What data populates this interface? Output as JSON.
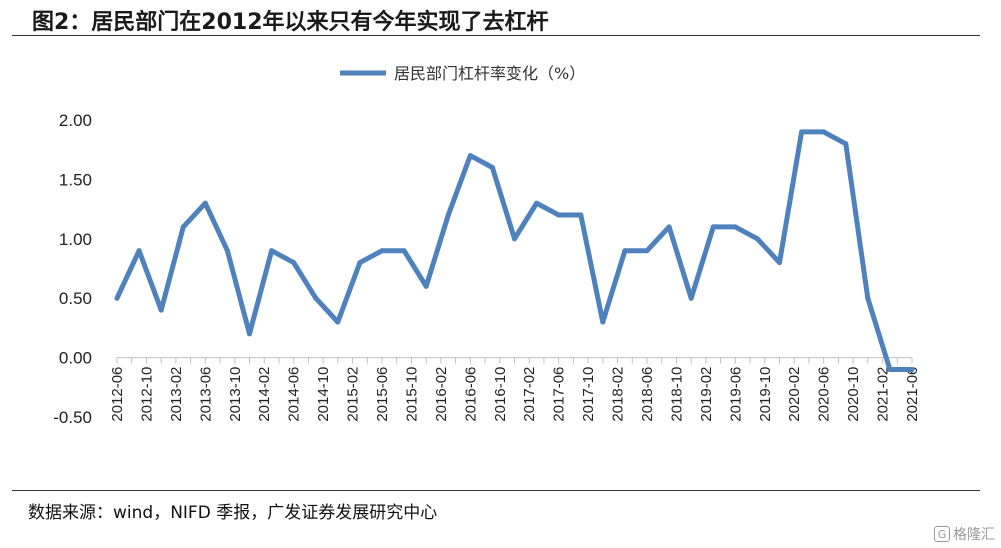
{
  "figure": {
    "title": "图2：居民部门在2012年以来只有今年实现了去杠杆",
    "source": "数据来源：wind，NIFD 季报，广发证券发展研究中心",
    "watermark": "格隆汇"
  },
  "chart_data": {
    "type": "line",
    "title": "",
    "xlabel": "",
    "ylabel": "",
    "ylim": [
      -0.5,
      2.0
    ],
    "yticks": [
      "2.00",
      "1.50",
      "1.00",
      "0.50",
      "0.00",
      "-0.50"
    ],
    "ytick_values": [
      2.0,
      1.5,
      1.0,
      0.5,
      0.0,
      -0.5
    ],
    "grid": false,
    "legend_position": "top-center",
    "x": [
      "2012-06",
      "2012-08",
      "2012-10",
      "2012-12",
      "2013-02",
      "2013-04",
      "2013-06",
      "2013-08",
      "2013-10",
      "2013-12",
      "2014-02",
      "2014-04",
      "2014-06",
      "2014-08",
      "2014-10",
      "2014-12",
      "2015-02",
      "2015-04",
      "2015-06",
      "2015-08",
      "2015-10",
      "2015-12",
      "2016-02",
      "2016-04",
      "2016-06",
      "2016-08",
      "2016-10",
      "2016-12",
      "2017-02",
      "2017-04",
      "2017-06",
      "2017-08",
      "2017-10",
      "2017-12",
      "2018-02",
      "2018-04",
      "2018-06",
      "2018-08",
      "2018-10",
      "2018-12",
      "2019-02",
      "2019-04",
      "2019-06",
      "2019-08",
      "2019-10",
      "2019-12",
      "2020-02",
      "2020-04",
      "2020-06",
      "2020-08",
      "2020-10",
      "2020-12",
      "2021-02",
      "2021-04",
      "2021-06"
    ],
    "x_tick_labels": [
      "2012-06",
      "2012-10",
      "2013-02",
      "2013-06",
      "2013-10",
      "2014-02",
      "2014-06",
      "2014-10",
      "2015-02",
      "2015-06",
      "2015-10",
      "2016-02",
      "2016-06",
      "2016-10",
      "2017-02",
      "2017-06",
      "2017-10",
      "2018-02",
      "2018-06",
      "2018-10",
      "2019-02",
      "2019-06",
      "2019-10",
      "2020-02",
      "2020-06",
      "2020-10",
      "2021-02",
      "2021-06"
    ],
    "series": [
      {
        "name": "居民部门杠杆率变化（%）",
        "color": "#4f81bd",
        "points": [
          [
            "2012-06",
            0.5
          ],
          [
            "2012-09",
            0.9
          ],
          [
            "2012-12",
            0.4
          ],
          [
            "2013-03",
            1.1
          ],
          [
            "2013-06",
            1.3
          ],
          [
            "2013-09",
            0.9
          ],
          [
            "2013-12",
            0.2
          ],
          [
            "2014-03",
            0.9
          ],
          [
            "2014-06",
            0.8
          ],
          [
            "2014-09",
            0.5
          ],
          [
            "2014-12",
            0.3
          ],
          [
            "2015-03",
            0.8
          ],
          [
            "2015-06",
            0.9
          ],
          [
            "2015-09",
            0.9
          ],
          [
            "2015-12",
            0.6
          ],
          [
            "2016-03",
            1.2
          ],
          [
            "2016-06",
            1.7
          ],
          [
            "2016-09",
            1.6
          ],
          [
            "2016-12",
            1.0
          ],
          [
            "2017-03",
            1.3
          ],
          [
            "2017-06",
            1.2
          ],
          [
            "2017-09",
            1.2
          ],
          [
            "2017-12",
            0.3
          ],
          [
            "2018-03",
            0.9
          ],
          [
            "2018-06",
            0.9
          ],
          [
            "2018-09",
            1.1
          ],
          [
            "2018-12",
            0.5
          ],
          [
            "2019-03",
            1.1
          ],
          [
            "2019-06",
            1.1
          ],
          [
            "2019-09",
            1.0
          ],
          [
            "2019-12",
            0.8
          ],
          [
            "2020-03",
            1.9
          ],
          [
            "2020-06",
            1.9
          ],
          [
            "2020-09",
            1.8
          ],
          [
            "2020-12",
            0.5
          ],
          [
            "2021-03",
            -0.1
          ],
          [
            "2021-06",
            -0.1
          ]
        ]
      }
    ]
  }
}
